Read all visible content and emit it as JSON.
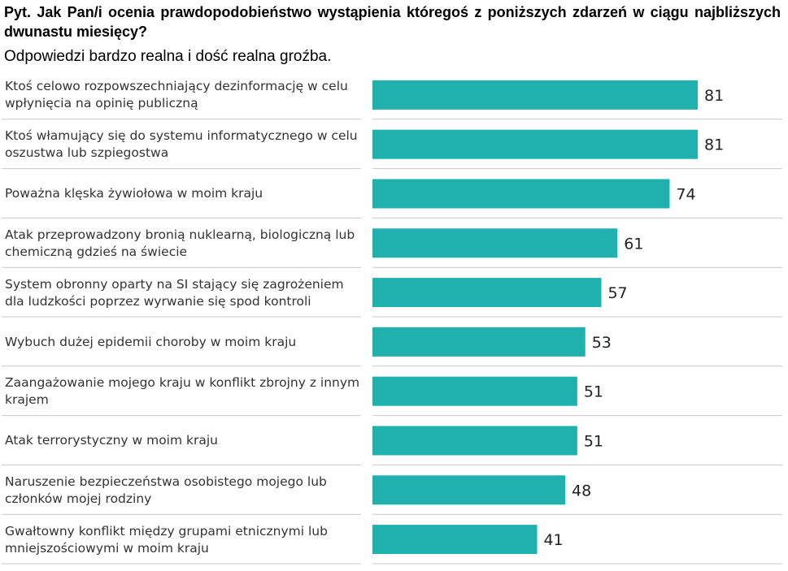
{
  "question": "Pyt. Jak Pan/i ocenia prawdopodobieństwo wystąpienia któregoś z poniższych zdarzeń w ciągu najbliższych dwunastu miesięcy?",
  "subtitle": "Odpowiedzi bardzo realna i dość realna groźba.",
  "colors": {
    "bar": "#20b0ad",
    "divider": "#c8c8c8"
  },
  "chart_data": {
    "type": "bar",
    "orientation": "horizontal",
    "categories": [
      "Ktoś celowo rozpowszechniający dezinformację w celu wpłynięcia na opinię publiczną",
      "Ktoś włamujący się do systemu informatycznego w celu oszustwa lub szpiegostwa",
      "Poważna klęska żywiołowa w moim kraju",
      "Atak przeprowadzony bronią nuklearną, biologiczną lub chemiczną gdzieś na świecie",
      "System obronny oparty na SI stający się zagrożeniem dla ludzkości poprzez wyrwanie się spod kontroli",
      "Wybuch dużej epidemii choroby w moim kraju",
      "Zaangażowanie mojego kraju w konflikt zbrojny z innym krajem",
      "Atak terrorystyczny w moim kraju",
      "Naruszenie bezpieczeństwa osobistego mojego lub członków mojej rodziny",
      "Gwałtowny konflikt między grupami etnicznymi lub mniejszościowymi w moim kraju"
    ],
    "values": [
      81,
      81,
      74,
      61,
      57,
      53,
      51,
      51,
      48,
      41
    ],
    "value_labels": [
      "81",
      "81",
      "74",
      "61",
      "57",
      "53",
      "51",
      "51",
      "48",
      "41"
    ],
    "xlim": [
      0,
      100
    ],
    "grid": false,
    "legend": "none"
  }
}
